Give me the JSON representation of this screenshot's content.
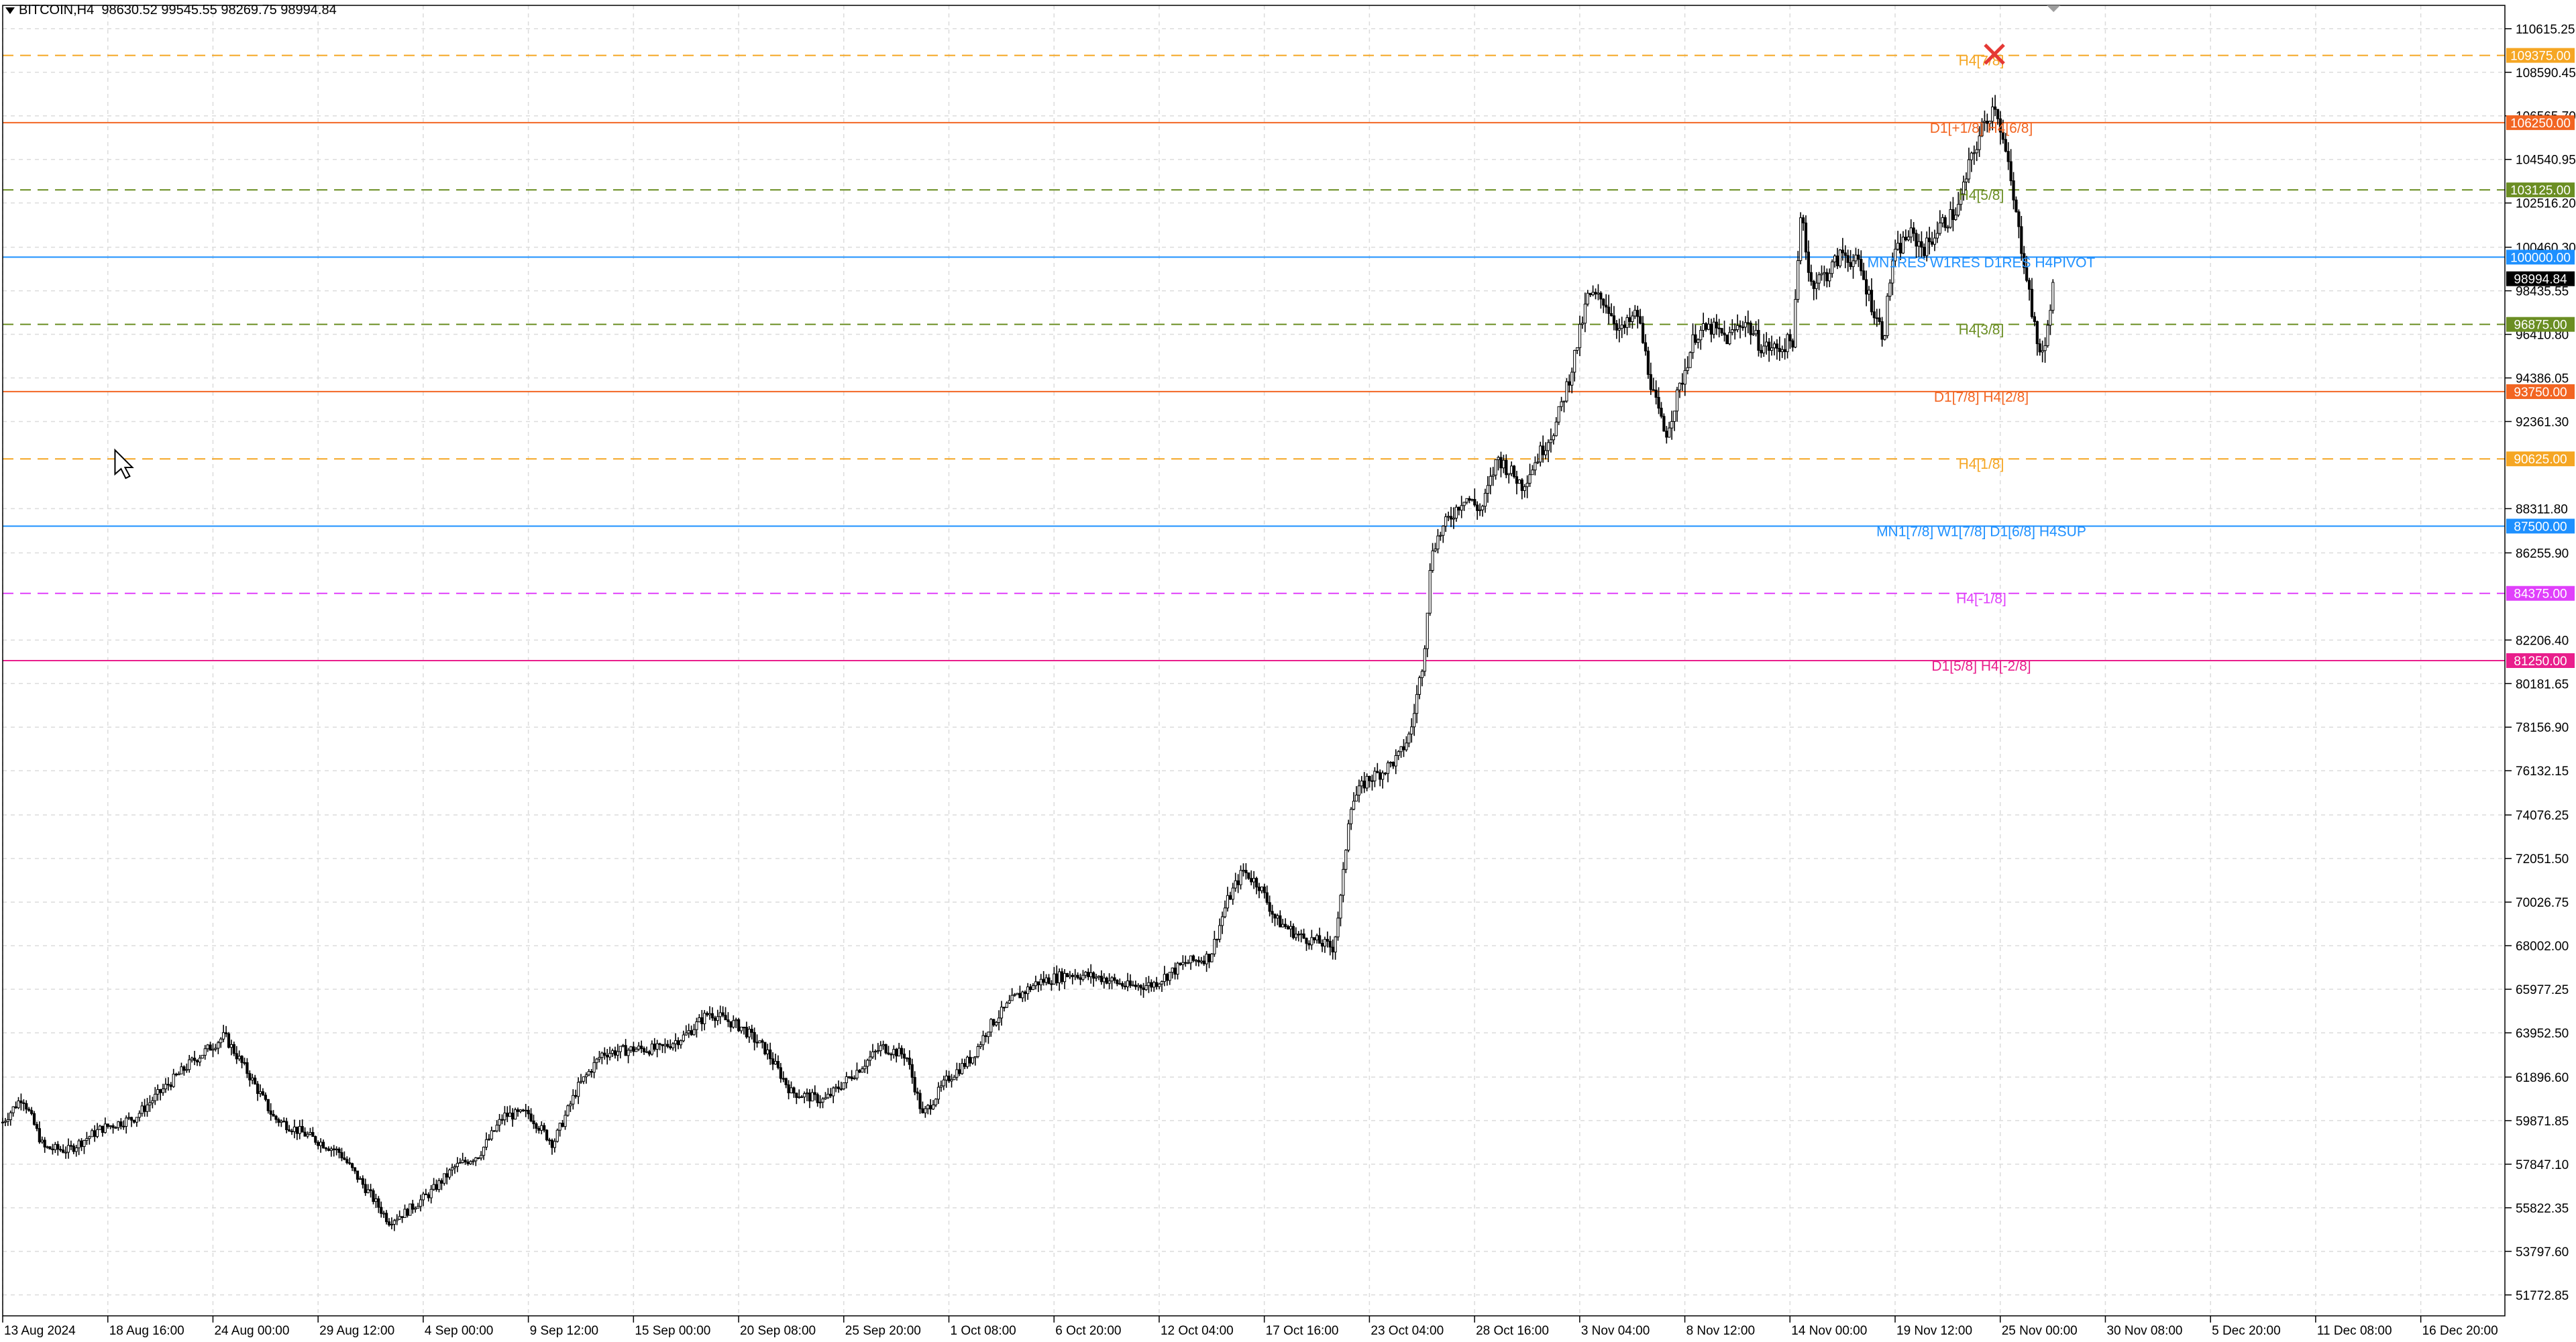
{
  "header": {
    "symbol_tf": "BITCOIN,H4",
    "ohlc": "98630.52 99545.55 98269.75 98994.84"
  },
  "colors": {
    "background": "#ffffff",
    "grid": "#dcdcdc",
    "candle": "#000000",
    "orange": "#f5a623",
    "red_orange": "#f26522",
    "olive": "#6b8e23",
    "gray": "#8c8c8c",
    "blue": "#1e90ff",
    "magenta": "#e040fb",
    "pink_magenta": "#e91e8c",
    "cross": "#e53935"
  },
  "chart_data": {
    "type": "candlestick",
    "title": "BITCOIN,H4",
    "y_range": [
      50800,
      111700
    ],
    "price_ticks": [
      "110615.25",
      "108590.45",
      "106565.70",
      "104540.95",
      "102516.20",
      "100460.30",
      "98435.55",
      "96410.80",
      "94386.05",
      "92361.30",
      "88311.80",
      "86255.90",
      "82206.40",
      "80181.65",
      "78156.90",
      "76132.15",
      "74076.25",
      "72051.50",
      "70026.75",
      "68002.00",
      "65977.25",
      "63952.50",
      "61896.60",
      "59871.85",
      "57847.10",
      "55822.35",
      "53797.60",
      "51772.85"
    ],
    "time_ticks": [
      "13 Aug 2024",
      "18 Aug 16:00",
      "24 Aug 00:00",
      "29 Aug 12:00",
      "4 Sep 00:00",
      "9 Sep 12:00",
      "15 Sep 00:00",
      "20 Sep 08:00",
      "25 Sep 20:00",
      "1 Oct 08:00",
      "6 Oct 20:00",
      "12 Oct 04:00",
      "17 Oct 16:00",
      "23 Oct 04:00",
      "28 Oct 16:00",
      "3 Nov 04:00",
      "8 Nov 12:00",
      "14 Nov 00:00",
      "19 Nov 12:00",
      "25 Nov 00:00",
      "30 Nov 08:00",
      "5 Dec 20:00",
      "11 Dec 08:00",
      "16 Dec 20:00"
    ],
    "current_price": "98994.84",
    "close_path": [
      [
        0,
        59800
      ],
      [
        12,
        61000
      ],
      [
        25,
        58600
      ],
      [
        40,
        58500
      ],
      [
        60,
        59500
      ],
      [
        80,
        60000
      ],
      [
        100,
        61500
      ],
      [
        115,
        62600
      ],
      [
        135,
        63800
      ],
      [
        150,
        62000
      ],
      [
        165,
        60000
      ],
      [
        185,
        59200
      ],
      [
        205,
        58400
      ],
      [
        225,
        56300
      ],
      [
        235,
        55200
      ],
      [
        245,
        55600
      ],
      [
        260,
        56500
      ],
      [
        275,
        57700
      ],
      [
        290,
        58300
      ],
      [
        305,
        60100
      ],
      [
        320,
        60200
      ],
      [
        335,
        58800
      ],
      [
        350,
        61400
      ],
      [
        365,
        63000
      ],
      [
        385,
        63200
      ],
      [
        400,
        63200
      ],
      [
        415,
        63800
      ],
      [
        430,
        64900
      ],
      [
        450,
        64200
      ],
      [
        465,
        63100
      ],
      [
        480,
        61200
      ],
      [
        500,
        60800
      ],
      [
        520,
        62200
      ],
      [
        535,
        63300
      ],
      [
        550,
        62900
      ],
      [
        560,
        60100
      ],
      [
        575,
        61800
      ],
      [
        590,
        62800
      ],
      [
        600,
        64200
      ],
      [
        615,
        65500
      ],
      [
        630,
        66300
      ],
      [
        650,
        66700
      ],
      [
        670,
        66500
      ],
      [
        685,
        66100
      ],
      [
        700,
        66200
      ],
      [
        720,
        67200
      ],
      [
        735,
        67500
      ],
      [
        745,
        70000
      ],
      [
        755,
        71500
      ],
      [
        765,
        70800
      ],
      [
        775,
        69200
      ],
      [
        790,
        68400
      ],
      [
        800,
        68200
      ],
      [
        810,
        67900
      ],
      [
        815,
        70500
      ],
      [
        820,
        74500
      ],
      [
        830,
        75700
      ],
      [
        840,
        76100
      ],
      [
        850,
        76800
      ],
      [
        857,
        77900
      ],
      [
        865,
        81500
      ],
      [
        870,
        86500
      ],
      [
        880,
        87800
      ],
      [
        890,
        88900
      ],
      [
        900,
        88200
      ],
      [
        910,
        90700
      ],
      [
        925,
        89400
      ],
      [
        935,
        90800
      ],
      [
        945,
        92100
      ],
      [
        955,
        94800
      ],
      [
        965,
        98200
      ],
      [
        975,
        98000
      ],
      [
        985,
        96500
      ],
      [
        995,
        97400
      ],
      [
        1005,
        93500
      ],
      [
        1012,
        91700
      ],
      [
        1020,
        93700
      ],
      [
        1030,
        96400
      ],
      [
        1040,
        96700
      ],
      [
        1050,
        96200
      ],
      [
        1060,
        97100
      ],
      [
        1070,
        95900
      ],
      [
        1080,
        95700
      ],
      [
        1090,
        96200
      ],
      [
        1095,
        102400
      ],
      [
        1100,
        98800
      ],
      [
        1110,
        99200
      ],
      [
        1120,
        100200
      ],
      [
        1130,
        99600
      ],
      [
        1140,
        97300
      ],
      [
        1145,
        96300
      ],
      [
        1150,
        99800
      ],
      [
        1160,
        101100
      ],
      [
        1170,
        100400
      ],
      [
        1180,
        101500
      ],
      [
        1190,
        102200
      ],
      [
        1198,
        104500
      ],
      [
        1205,
        106000
      ],
      [
        1213,
        107200
      ],
      [
        1220,
        104500
      ],
      [
        1228,
        100800
      ],
      [
        1232,
        99200
      ],
      [
        1238,
        96000
      ],
      [
        1243,
        95500
      ],
      [
        1246,
        97700
      ],
      [
        1249,
        98994.84
      ]
    ],
    "levels": [
      {
        "price": 109375,
        "label": "H4[7/8]",
        "tag": "109375.00",
        "color": "orange",
        "dash": true
      },
      {
        "price": 106250,
        "label": "D1[+1/8] H4[6/8]",
        "tag": "106250.00",
        "color": "red_orange",
        "dash": false
      },
      {
        "price": 103125,
        "label": "H4[5/8]",
        "tag": "103125.00",
        "color": "olive",
        "dash": true
      },
      {
        "price": 100000,
        "label": "MN1RES W1RES D1RES H4PIVOT",
        "tag": "100000.00",
        "color": "blue",
        "dash": false
      },
      {
        "price": 96875,
        "label": "H4[3/8]",
        "tag": "96875.00",
        "color": "olive",
        "dash": true
      },
      {
        "price": 93750,
        "label": "D1[7/8] H4[2/8]",
        "tag": "93750.00",
        "color": "red_orange",
        "dash": false
      },
      {
        "price": 90625,
        "label": "H4[1/8]",
        "tag": "90625.00",
        "color": "orange",
        "dash": true
      },
      {
        "price": 87500,
        "label": "MN1[7/8] W1[7/8] D1[6/8] H4SUP",
        "tag": "87500.00",
        "color": "blue",
        "dash": false
      },
      {
        "price": 84375,
        "label": "H4[-1/8]",
        "tag": "84375.00",
        "color": "magenta",
        "dash": true
      },
      {
        "price": 81250,
        "label": "D1[5/8] H4[-2/8]",
        "tag": "81250.00",
        "color": "pink_magenta",
        "dash": false
      }
    ]
  }
}
